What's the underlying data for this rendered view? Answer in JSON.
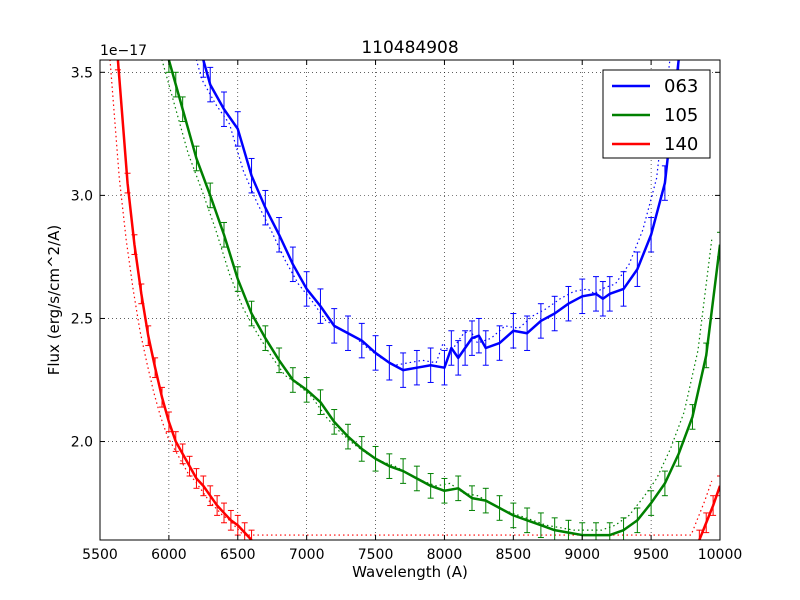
{
  "chart_data": {
    "type": "line",
    "title": "110484908",
    "xlabel": "Wavelength (A)",
    "ylabel": "Flux (erg/s/cm^2/A)",
    "y_offset_label": "1e−17",
    "xlim": [
      5500,
      10000
    ],
    "ylim": [
      1.6,
      3.55
    ],
    "x_ticks": [
      5500,
      6000,
      6500,
      7000,
      7500,
      8000,
      8500,
      9000,
      9500,
      10000
    ],
    "x_tick_labels": [
      "5500",
      "6000",
      "6500",
      "7000",
      "7500",
      "8000",
      "8500",
      "9000",
      "9500",
      "10000"
    ],
    "y_ticks": [
      2.0,
      2.5,
      3.0,
      3.5
    ],
    "y_tick_labels": [
      "2.0",
      "2.5",
      "3.0",
      "3.5"
    ],
    "grid": true,
    "legend_position": "top-right",
    "series": [
      {
        "name": "063",
        "color": "#0000ff",
        "error": 0.07,
        "x": [
          6250,
          6300,
          6400,
          6500,
          6600,
          6700,
          6800,
          6900,
          7000,
          7100,
          7200,
          7300,
          7400,
          7500,
          7600,
          7700,
          7800,
          7900,
          8000,
          8050,
          8100,
          8150,
          8200,
          8250,
          8300,
          8400,
          8500,
          8600,
          8700,
          8800,
          8900,
          9000,
          9100,
          9150,
          9200,
          9300,
          9400,
          9500,
          9600,
          9700
        ],
        "y": [
          3.55,
          3.45,
          3.35,
          3.27,
          3.08,
          2.95,
          2.84,
          2.72,
          2.62,
          2.55,
          2.47,
          2.44,
          2.41,
          2.36,
          2.32,
          2.29,
          2.3,
          2.31,
          2.3,
          2.38,
          2.34,
          2.38,
          2.42,
          2.43,
          2.38,
          2.4,
          2.45,
          2.44,
          2.49,
          2.52,
          2.56,
          2.59,
          2.6,
          2.58,
          2.6,
          2.62,
          2.7,
          2.84,
          3.05,
          3.55
        ]
      },
      {
        "name": "105",
        "color": "#008000",
        "error": 0.05,
        "x": [
          6000,
          6050,
          6100,
          6200,
          6300,
          6400,
          6500,
          6600,
          6700,
          6800,
          6900,
          7000,
          7100,
          7200,
          7300,
          7400,
          7500,
          7600,
          7700,
          7800,
          7900,
          8000,
          8100,
          8200,
          8300,
          8400,
          8500,
          8600,
          8700,
          8800,
          8900,
          9000,
          9100,
          9200,
          9300,
          9400,
          9500,
          9600,
          9700,
          9800,
          9900,
          10000
        ],
        "y": [
          3.55,
          3.45,
          3.35,
          3.15,
          3.0,
          2.84,
          2.66,
          2.52,
          2.42,
          2.33,
          2.25,
          2.21,
          2.16,
          2.08,
          2.02,
          1.97,
          1.93,
          1.9,
          1.88,
          1.85,
          1.82,
          1.8,
          1.81,
          1.77,
          1.76,
          1.73,
          1.7,
          1.68,
          1.66,
          1.64,
          1.63,
          1.62,
          1.62,
          1.62,
          1.64,
          1.68,
          1.75,
          1.83,
          1.95,
          2.1,
          2.35,
          2.8
        ]
      },
      {
        "name": "140",
        "color": "#ff0000",
        "error": 0.04,
        "x": [
          5630,
          5700,
          5750,
          5800,
          5850,
          5900,
          5950,
          6000,
          6050,
          6100,
          6150,
          6200,
          6250,
          6300,
          6350,
          6400,
          6450,
          6500,
          6550,
          6600,
          9850,
          9900,
          9950,
          10000
        ],
        "y": [
          3.55,
          3.05,
          2.8,
          2.6,
          2.43,
          2.3,
          2.18,
          2.08,
          2.0,
          1.95,
          1.9,
          1.85,
          1.82,
          1.78,
          1.74,
          1.71,
          1.68,
          1.66,
          1.63,
          1.6,
          1.6,
          1.67,
          1.74,
          1.82
        ]
      }
    ]
  }
}
